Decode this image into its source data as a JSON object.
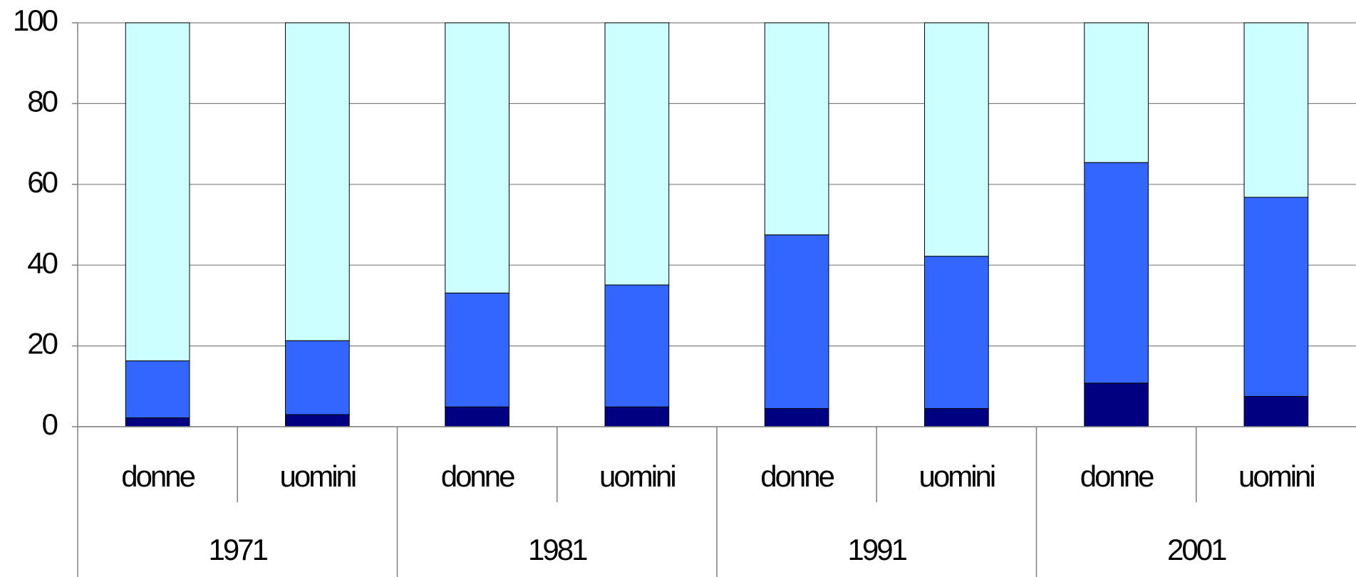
{
  "chart_data": {
    "type": "stacked_bar",
    "categories": [
      "donne",
      "uomini",
      "donne",
      "uomini",
      "donne",
      "uomini",
      "donne",
      "uomini"
    ],
    "group_labels": [
      "1971",
      "1981",
      "1991",
      "2001"
    ],
    "series": [
      {
        "color": "#000080",
        "values": [
          2.2,
          3.0,
          4.9,
          4.9,
          4.5,
          4.5,
          10.8,
          7.5
        ]
      },
      {
        "color": "#3366ff",
        "values": [
          14.1,
          18.3,
          28.2,
          30.2,
          43.0,
          37.7,
          54.6,
          49.3
        ]
      },
      {
        "color": "#ccffff",
        "values": [
          83.7,
          78.7,
          66.9,
          64.9,
          52.5,
          57.8,
          34.6,
          43.2
        ]
      }
    ],
    "ylim": [
      0,
      100
    ],
    "yticks": [
      0,
      20,
      40,
      60,
      80,
      100
    ],
    "grid": true
  }
}
